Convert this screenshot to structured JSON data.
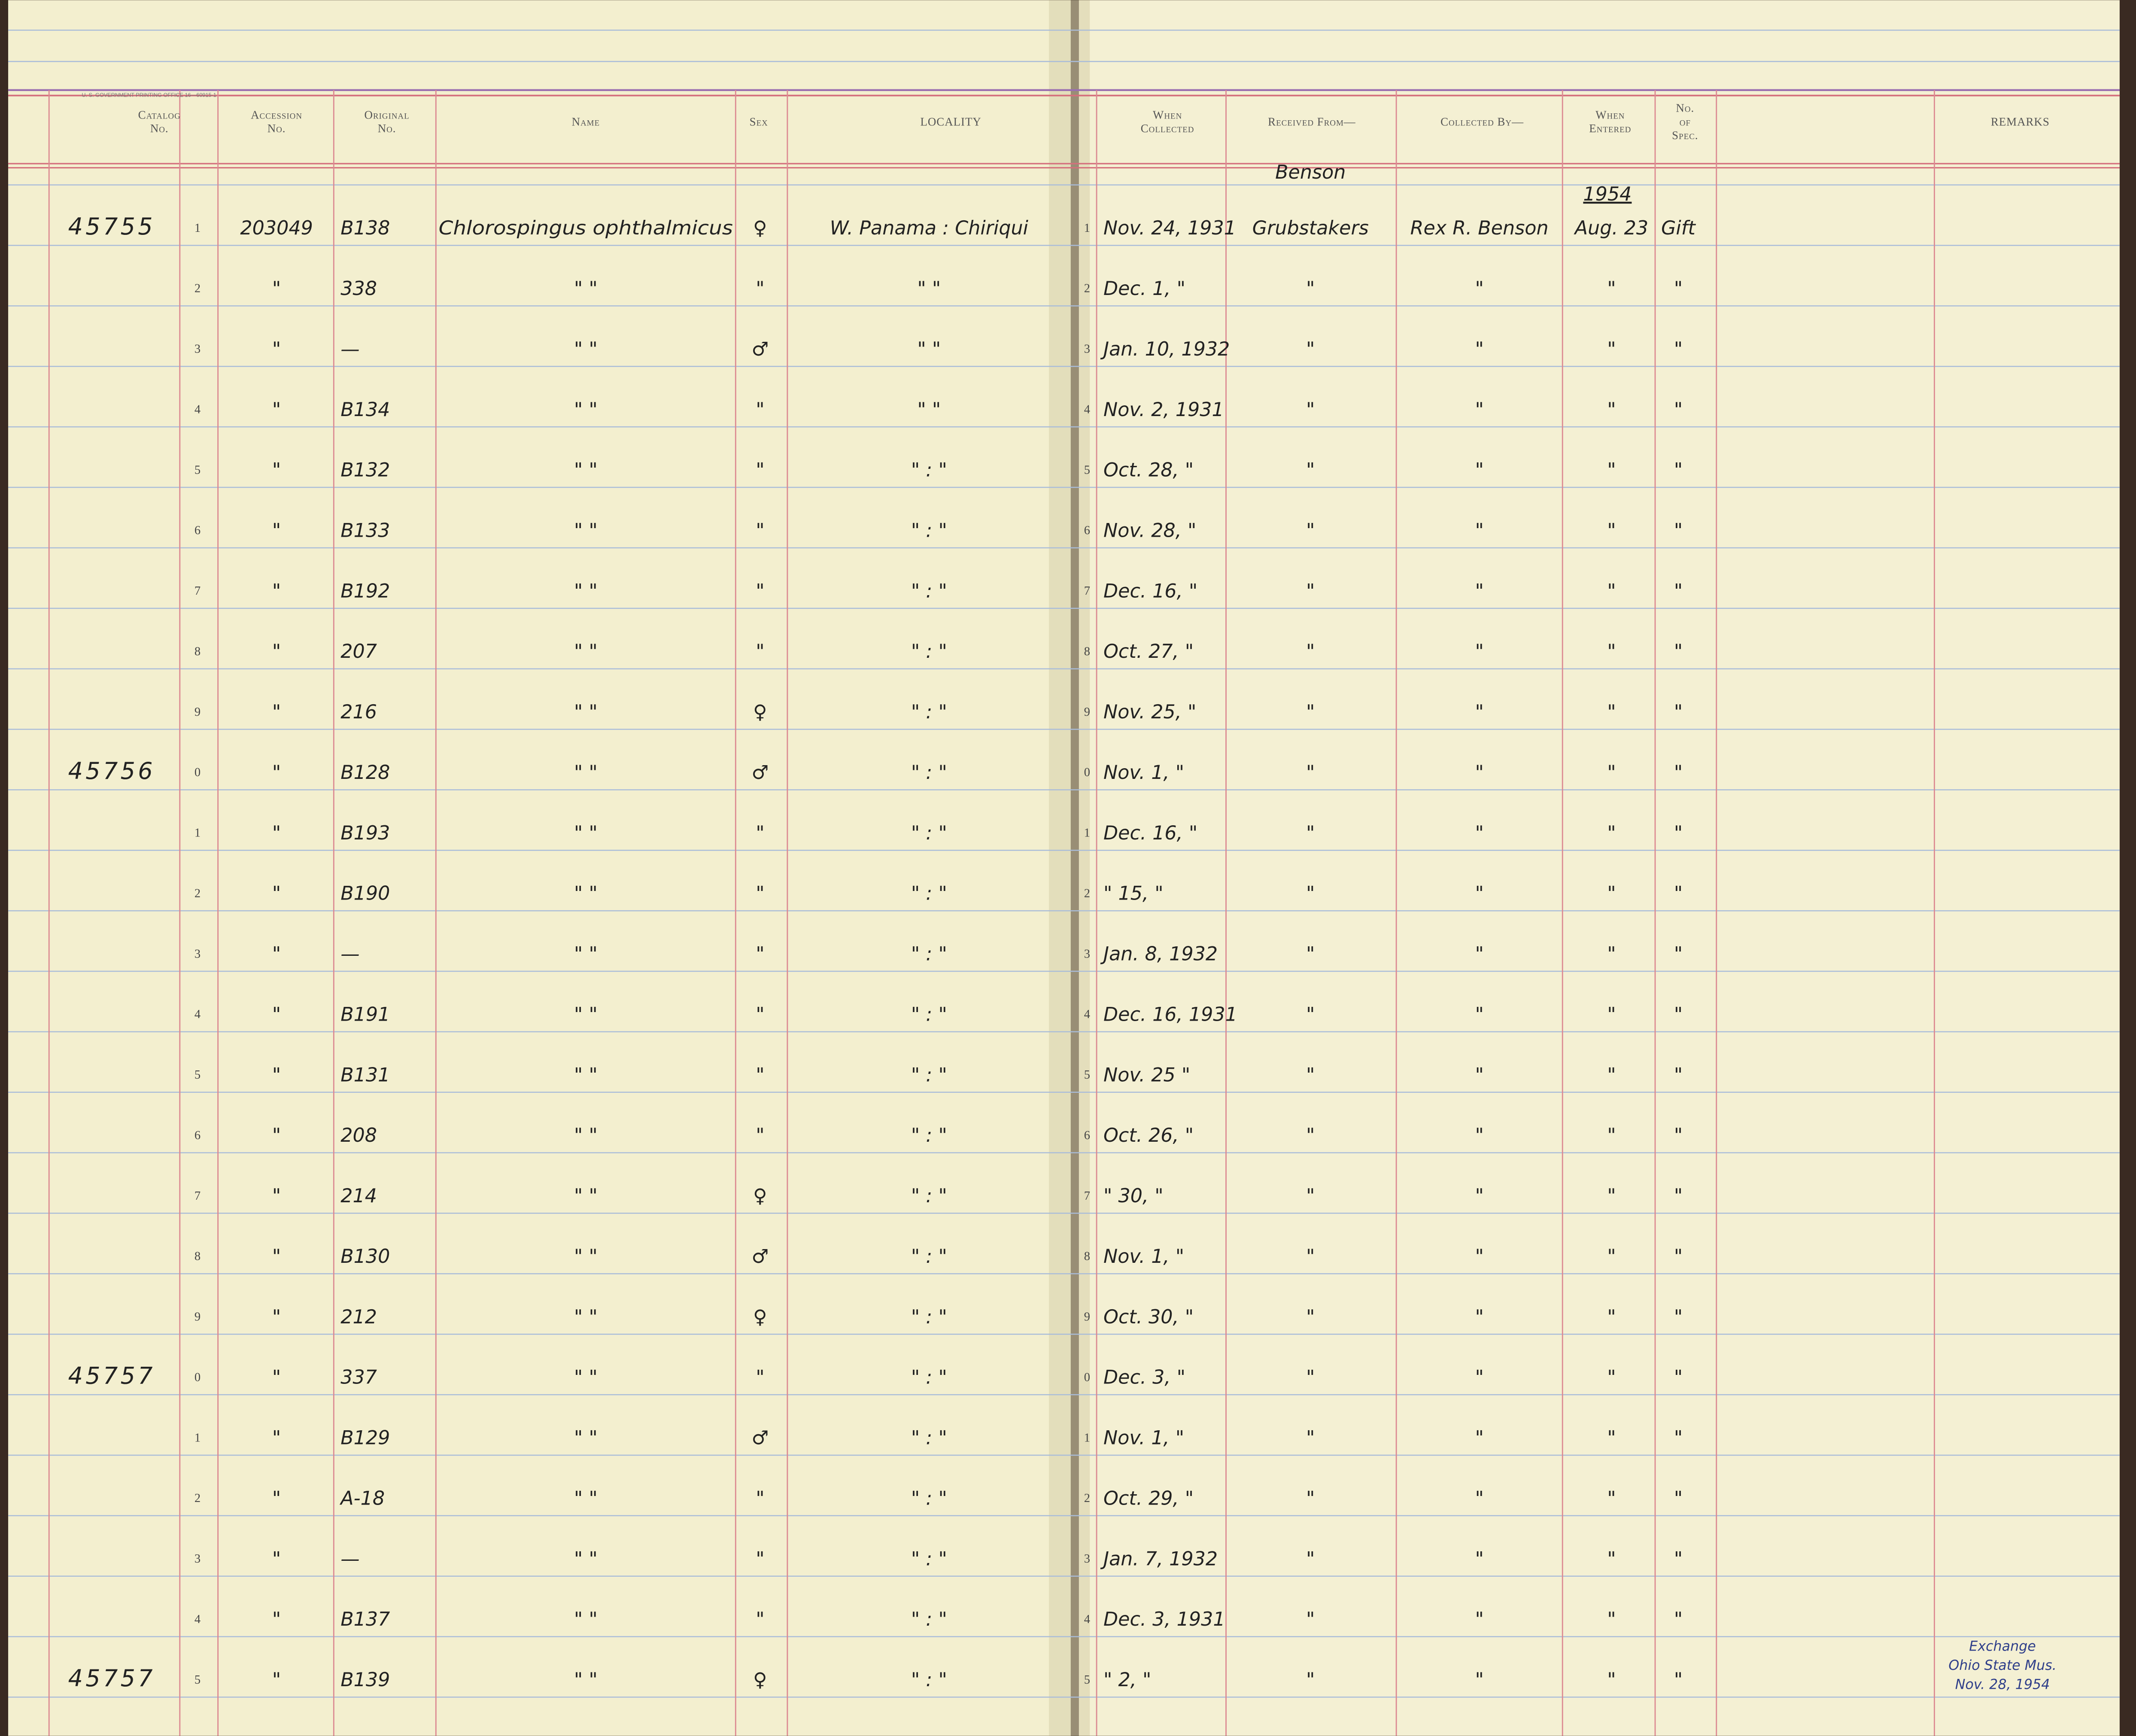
{
  "header": {
    "printer_note": "U. S. GOVERNMENT PRINTING OFFICE 16—60915-1",
    "columns": {
      "catalog": [
        "Catalog",
        "No."
      ],
      "accession": [
        "Accession",
        "No."
      ],
      "original": [
        "Original",
        "No."
      ],
      "name": [
        "Name"
      ],
      "sex": [
        "Sex"
      ],
      "locality": [
        "LOCALITY"
      ],
      "collected": [
        "When",
        "Collected"
      ],
      "received": [
        "Received From—"
      ],
      "collected_by": [
        "Collected By—"
      ],
      "entered": [
        "When",
        "Entered"
      ],
      "spec": [
        "No.",
        "of",
        "Spec."
      ],
      "remarks": [
        "REMARKS"
      ]
    }
  },
  "annotations": {
    "received_above": "Benson",
    "entered_above": "1954"
  },
  "rows": [
    {
      "catalog": "45755",
      "line": "1",
      "accession": "203049",
      "original": "B138",
      "name": "Chlorospingus ophthalmicus",
      "sex": "♀",
      "locality": "W. Panama : Chiriqui",
      "line_right": "1",
      "collected": "Nov. 24, 1931",
      "received": "Grubstakers",
      "collected_by": "Rex R. Benson",
      "entered": "Aug. 23",
      "spec": "Gift"
    },
    {
      "line": "2",
      "accession": "\"",
      "original": "338",
      "name": "\"       \"",
      "sex": "\"",
      "locality": "\"     \"",
      "line_right": "2",
      "collected": "Dec. 1, \"",
      "received": "\"",
      "collected_by": "\"",
      "entered": "\"",
      "spec": "\""
    },
    {
      "line": "3",
      "accession": "\"",
      "original": "—",
      "name": "\"       \"",
      "sex": "♂",
      "locality": "\"     \"",
      "line_right": "3",
      "collected": "Jan. 10, 1932",
      "received": "\"",
      "collected_by": "\"",
      "entered": "\"",
      "spec": "\""
    },
    {
      "line": "4",
      "accession": "\"",
      "original": "B134",
      "name": "\"       \"",
      "sex": "\"",
      "locality": "\"     \"",
      "line_right": "4",
      "collected": "Nov. 2, 1931",
      "received": "\"",
      "collected_by": "\"",
      "entered": "\"",
      "spec": "\""
    },
    {
      "line": "5",
      "accession": "\"",
      "original": "B132",
      "name": "\"       \"",
      "sex": "\"",
      "locality": "\"  :  \"",
      "line_right": "5",
      "collected": "Oct. 28, \"",
      "received": "\"",
      "collected_by": "\"",
      "entered": "\"",
      "spec": "\""
    },
    {
      "line": "6",
      "accession": "\"",
      "original": "B133",
      "name": "\"       \"",
      "sex": "\"",
      "locality": "\"  :  \"",
      "line_right": "6",
      "collected": "Nov. 28, \"",
      "received": "\"",
      "collected_by": "\"",
      "entered": "\"",
      "spec": "\""
    },
    {
      "line": "7",
      "accession": "\"",
      "original": "B192",
      "name": "\"       \"",
      "sex": "\"",
      "locality": "\"  :  \"",
      "line_right": "7",
      "collected": "Dec. 16, \"",
      "received": "\"",
      "collected_by": "\"",
      "entered": "\"",
      "spec": "\""
    },
    {
      "line": "8",
      "accession": "\"",
      "original": "207",
      "name": "\"       \"",
      "sex": "\"",
      "locality": "\"  :  \"",
      "line_right": "8",
      "collected": "Oct. 27, \"",
      "received": "\"",
      "collected_by": "\"",
      "entered": "\"",
      "spec": "\""
    },
    {
      "line": "9",
      "accession": "\"",
      "original": "216",
      "name": "\"       \"",
      "sex": "♀",
      "locality": "\"  :  \"",
      "line_right": "9",
      "collected": "Nov. 25, \"",
      "received": "\"",
      "collected_by": "\"",
      "entered": "\"",
      "spec": "\""
    },
    {
      "catalog": "45756",
      "line": "0",
      "accession": "\"",
      "original": "B128",
      "name": "\"       \"",
      "sex": "♂",
      "locality": "\"  :  \"",
      "line_right": "0",
      "collected": "Nov. 1, \"",
      "received": "\"",
      "collected_by": "\"",
      "entered": "\"",
      "spec": "\""
    },
    {
      "line": "1",
      "accession": "\"",
      "original": "B193",
      "name": "\"       \"",
      "sex": "\"",
      "locality": "\"  :  \"",
      "line_right": "1",
      "collected": "Dec. 16, \"",
      "received": "\"",
      "collected_by": "\"",
      "entered": "\"",
      "spec": "\""
    },
    {
      "line": "2",
      "accession": "\"",
      "original": "B190",
      "name": "\"       \"",
      "sex": "\"",
      "locality": "\"  :  \"",
      "line_right": "2",
      "collected": "\" 15, \"",
      "received": "\"",
      "collected_by": "\"",
      "entered": "\"",
      "spec": "\""
    },
    {
      "line": "3",
      "accession": "\"",
      "original": "—",
      "name": "\"       \"",
      "sex": "\"",
      "locality": "\"  :  \"",
      "line_right": "3",
      "collected": "Jan. 8, 1932",
      "received": "\"",
      "collected_by": "\"",
      "entered": "\"",
      "spec": "\""
    },
    {
      "line": "4",
      "accession": "\"",
      "original": "B191",
      "name": "\"       \"",
      "sex": "\"",
      "locality": "\"  :  \"",
      "line_right": "4",
      "collected": "Dec. 16, 1931",
      "received": "\"",
      "collected_by": "\"",
      "entered": "\"",
      "spec": "\""
    },
    {
      "line": "5",
      "accession": "\"",
      "original": "B131",
      "name": "\"       \"",
      "sex": "\"",
      "locality": "\"  :  \"",
      "line_right": "5",
      "collected": "Nov. 25 \"",
      "received": "\"",
      "collected_by": "\"",
      "entered": "\"",
      "spec": "\""
    },
    {
      "line": "6",
      "accession": "\"",
      "original": "208",
      "name": "\"       \"",
      "sex": "\"",
      "locality": "\"  :  \"",
      "line_right": "6",
      "collected": "Oct. 26, \"",
      "received": "\"",
      "collected_by": "\"",
      "entered": "\"",
      "spec": "\""
    },
    {
      "line": "7",
      "accession": "\"",
      "original": "214",
      "name": "\"       \"",
      "sex": "♀",
      "locality": "\"  :  \"",
      "line_right": "7",
      "collected": "\" 30, \"",
      "received": "\"",
      "collected_by": "\"",
      "entered": "\"",
      "spec": "\""
    },
    {
      "line": "8",
      "accession": "\"",
      "original": "B130",
      "name": "\"       \"",
      "sex": "♂",
      "locality": "\"  :  \"",
      "line_right": "8",
      "collected": "Nov. 1, \"",
      "received": "\"",
      "collected_by": "\"",
      "entered": "\"",
      "spec": "\""
    },
    {
      "line": "9",
      "accession": "\"",
      "original": "212",
      "name": "\"       \"",
      "sex": "♀",
      "locality": "\"  :  \"",
      "line_right": "9",
      "collected": "Oct. 30, \"",
      "received": "\"",
      "collected_by": "\"",
      "entered": "\"",
      "spec": "\""
    },
    {
      "catalog": "45757",
      "line": "0",
      "accession": "\"",
      "original": "337",
      "name": "\"       \"",
      "sex": "\"",
      "locality": "\"  :  \"",
      "line_right": "0",
      "collected": "Dec. 3, \"",
      "received": "\"",
      "collected_by": "\"",
      "entered": "\"",
      "spec": "\""
    },
    {
      "line": "1",
      "accession": "\"",
      "original": "B129",
      "name": "\"       \"",
      "sex": "♂",
      "locality": "\"  :  \"",
      "line_right": "1",
      "collected": "Nov. 1, \"",
      "received": "\"",
      "collected_by": "\"",
      "entered": "\"",
      "spec": "\""
    },
    {
      "line": "2",
      "accession": "\"",
      "original": "A-18",
      "name": "\"       \"",
      "sex": "\"",
      "locality": "\"  :  \"",
      "line_right": "2",
      "collected": "Oct. 29, \"",
      "received": "\"",
      "collected_by": "\"",
      "entered": "\"",
      "spec": "\""
    },
    {
      "line": "3",
      "accession": "\"",
      "original": "—",
      "name": "\"       \"",
      "sex": "\"",
      "locality": "\"  :  \"",
      "line_right": "3",
      "collected": "Jan. 7, 1932",
      "received": "\"",
      "collected_by": "\"",
      "entered": "\"",
      "spec": "\""
    },
    {
      "line": "4",
      "accession": "\"",
      "original": "B137",
      "name": "\"       \"",
      "sex": "\"",
      "locality": "\"  :  \"",
      "line_right": "4",
      "collected": "Dec. 3, 1931",
      "received": "\"",
      "collected_by": "\"",
      "entered": "\"",
      "spec": "\""
    },
    {
      "catalog": "45757",
      "line": "5",
      "accession": "\"",
      "original": "B139",
      "name": "\"       \"",
      "sex": "♀",
      "locality": "\"  :  \"",
      "line_right": "5",
      "collected": "\" 2, \"",
      "received": "\"",
      "collected_by": "\"",
      "entered": "\"",
      "spec": "\"",
      "remarks": [
        "Exchange",
        "Ohio State Mus.",
        "Nov. 28, 1954"
      ]
    }
  ]
}
